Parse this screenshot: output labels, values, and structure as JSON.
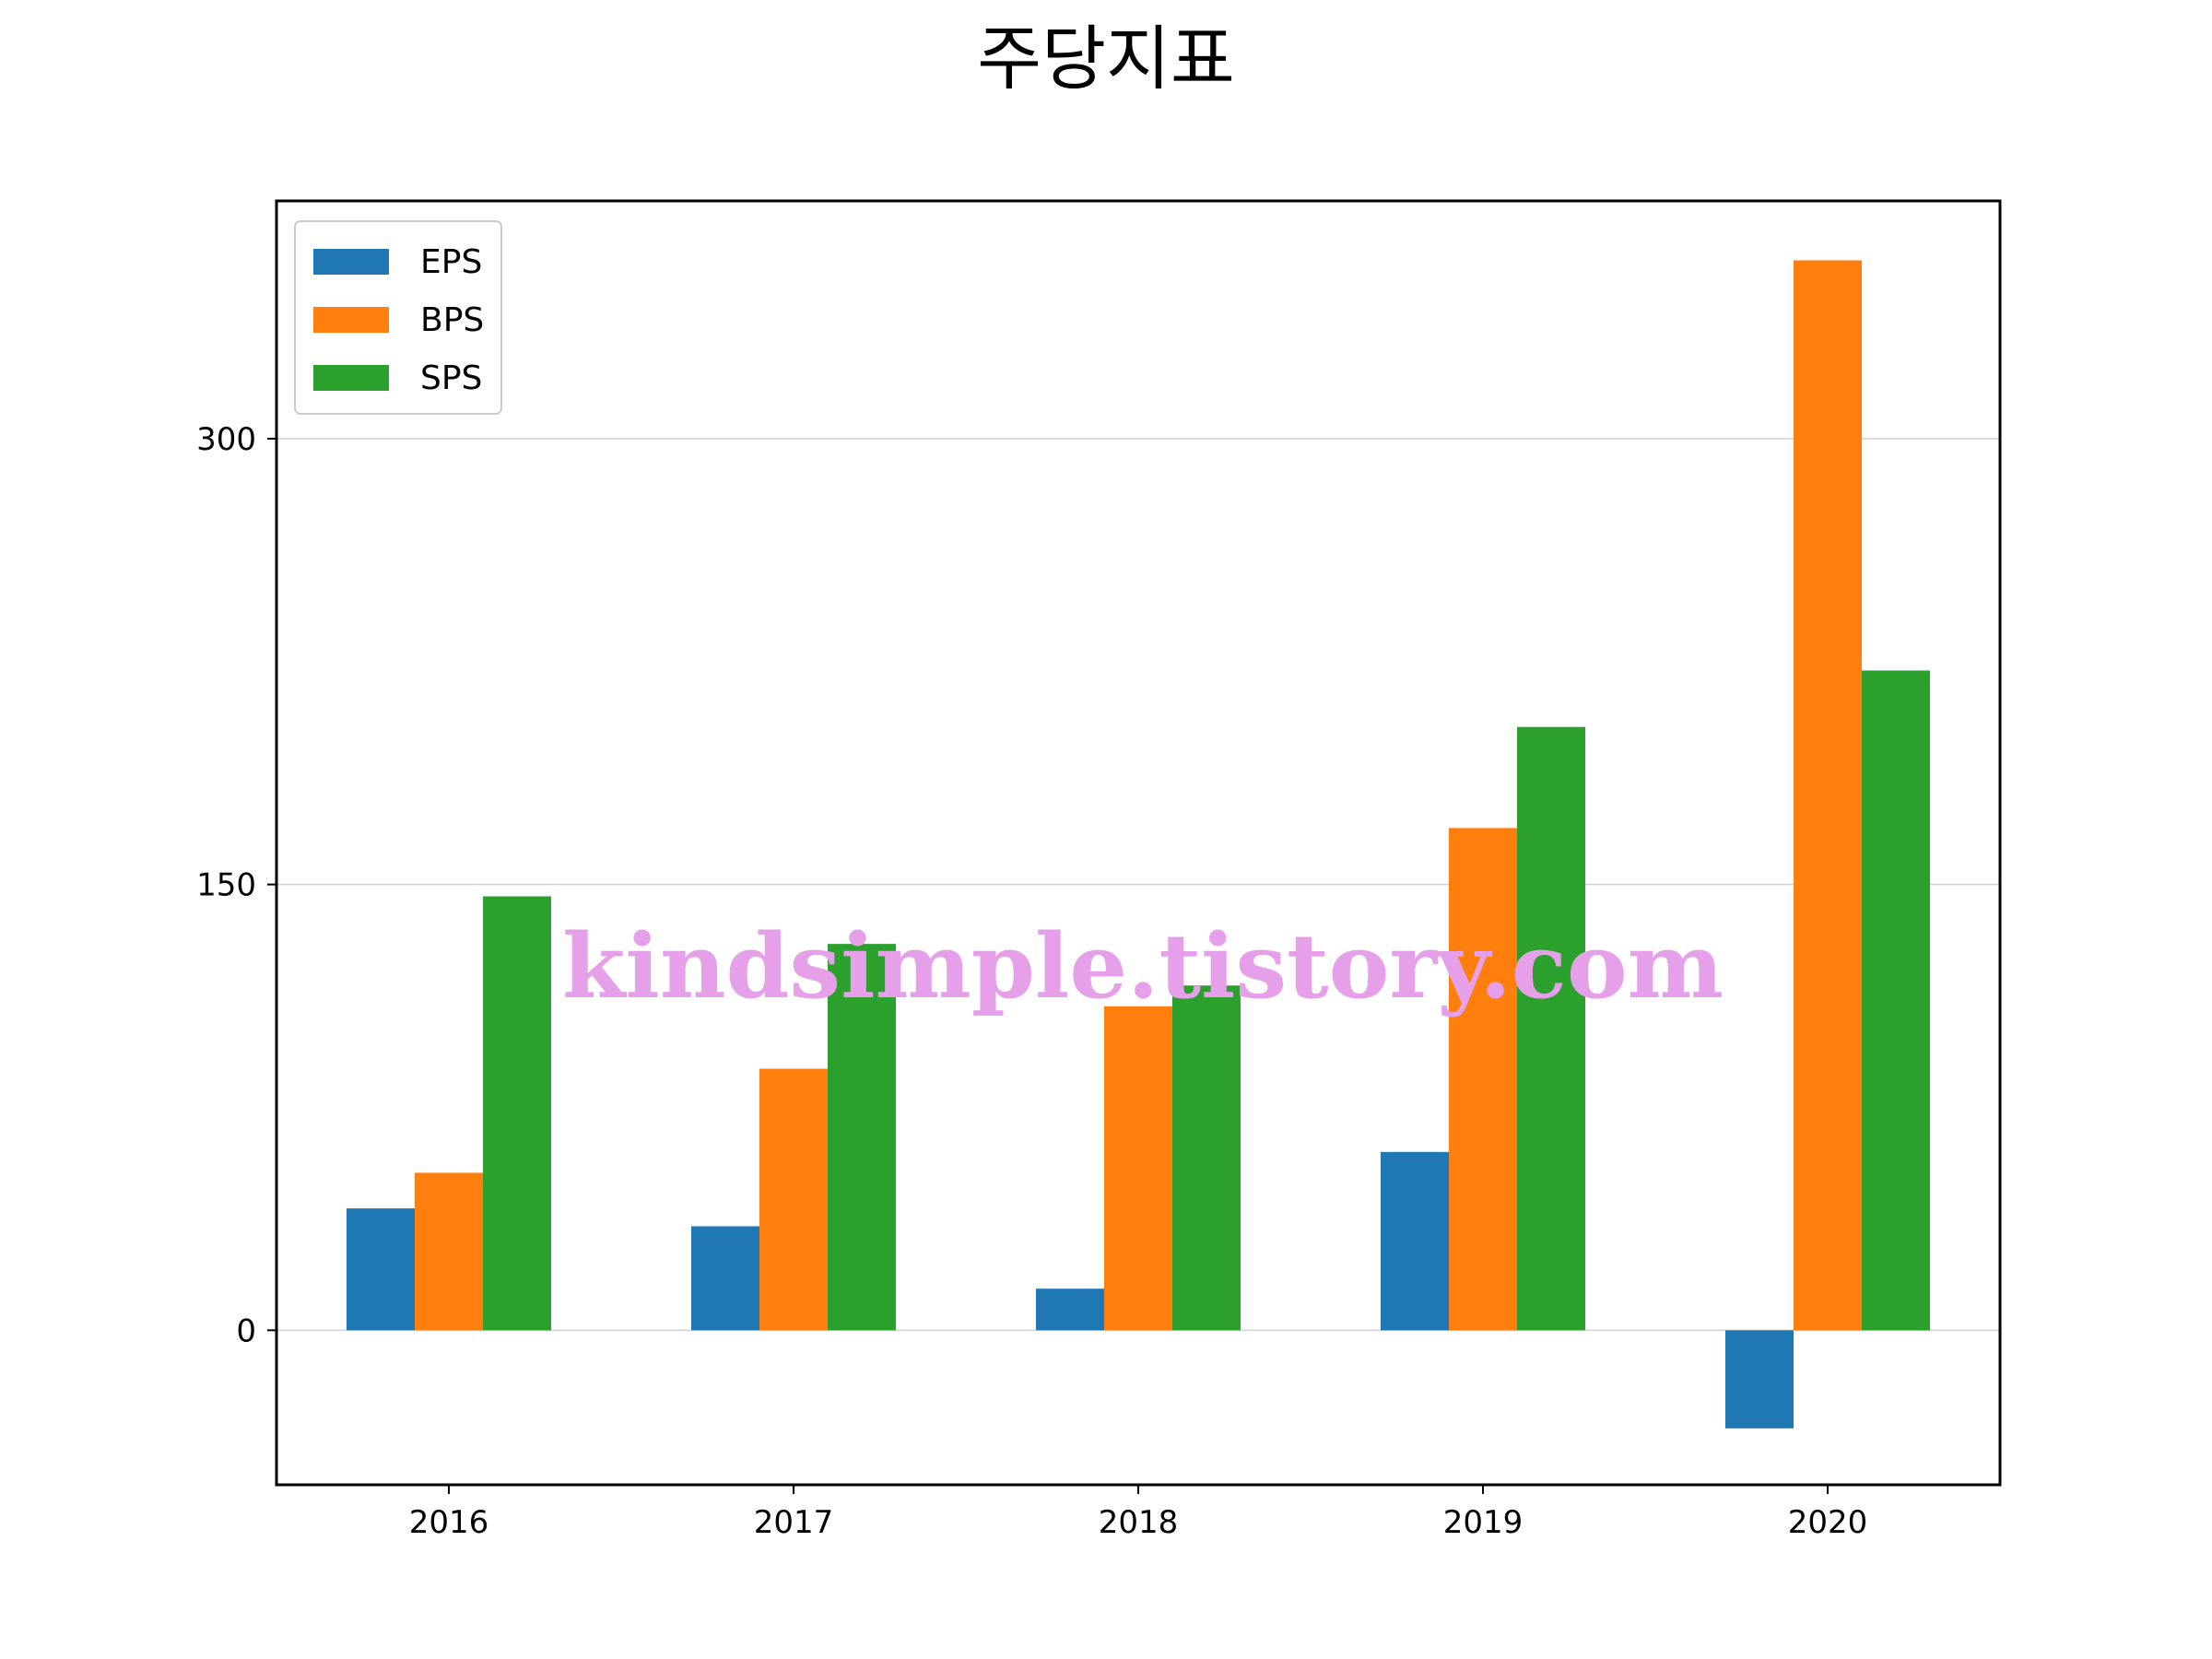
{
  "chart_data": {
    "type": "bar",
    "title": "주당지표",
    "xlabel": "",
    "ylabel": "",
    "categories": [
      "2016",
      "2017",
      "2018",
      "2019",
      "2020"
    ],
    "series": [
      {
        "name": "EPS",
        "color": "#1f77b4",
        "values": [
          41,
          35,
          14,
          60,
          -33
        ]
      },
      {
        "name": "BPS",
        "color": "#ff7f0e",
        "values": [
          53,
          88,
          109,
          169,
          360
        ]
      },
      {
        "name": "SPS",
        "color": "#2ca02c",
        "values": [
          146,
          130,
          116,
          203,
          222
        ]
      }
    ],
    "ylim": [
      -52,
      380
    ],
    "yticks": [
      0,
      150,
      300
    ],
    "grid": "y",
    "legend": "top-left"
  },
  "watermark": "kindsimple.tistory.com"
}
